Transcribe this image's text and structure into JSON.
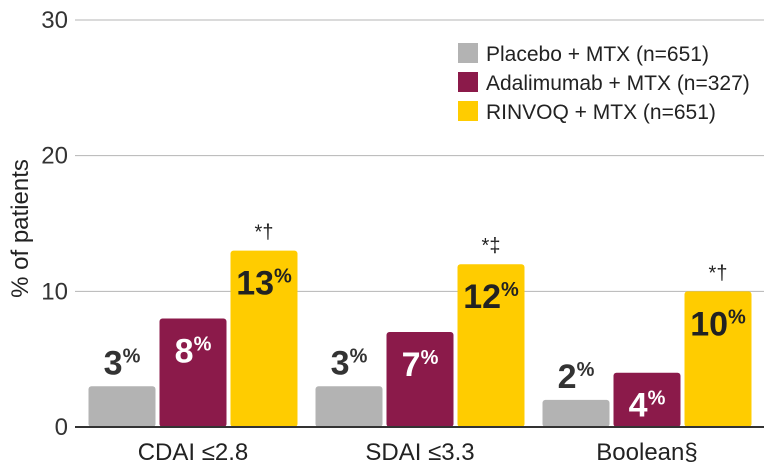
{
  "chart_data": {
    "type": "bar",
    "title": "",
    "ylabel": "% of patients",
    "xlabel": "",
    "ylim": [
      0,
      30
    ],
    "yticks": [
      0,
      10,
      20,
      30
    ],
    "grid": true,
    "legend_position": "top-right",
    "categories": [
      "CDAI ≤2.8",
      "SDAI ≤3.3",
      "Boolean§"
    ],
    "series": [
      {
        "name": "Placebo + MTX (n=651)",
        "color": "#b3b3b3",
        "values": [
          3,
          3,
          2
        ],
        "labels": [
          "3",
          "3",
          "2"
        ],
        "label_color": "#333333",
        "annotations": [
          "",
          "",
          ""
        ]
      },
      {
        "name": "Adalimumab + MTX (n=327)",
        "color": "#8b1a4a",
        "values": [
          8,
          7,
          4
        ],
        "labels": [
          "8",
          "7",
          "4"
        ],
        "label_color": "#ffffff",
        "annotations": [
          "",
          "",
          ""
        ]
      },
      {
        "name": "RINVOQ + MTX (n=651)",
        "color": "#ffcc00",
        "values": [
          13,
          12,
          10
        ],
        "labels": [
          "13",
          "12",
          "10"
        ],
        "label_color": "#222222",
        "annotations": [
          "*†",
          "*‡",
          "*†"
        ]
      }
    ],
    "value_suffix": "%"
  }
}
